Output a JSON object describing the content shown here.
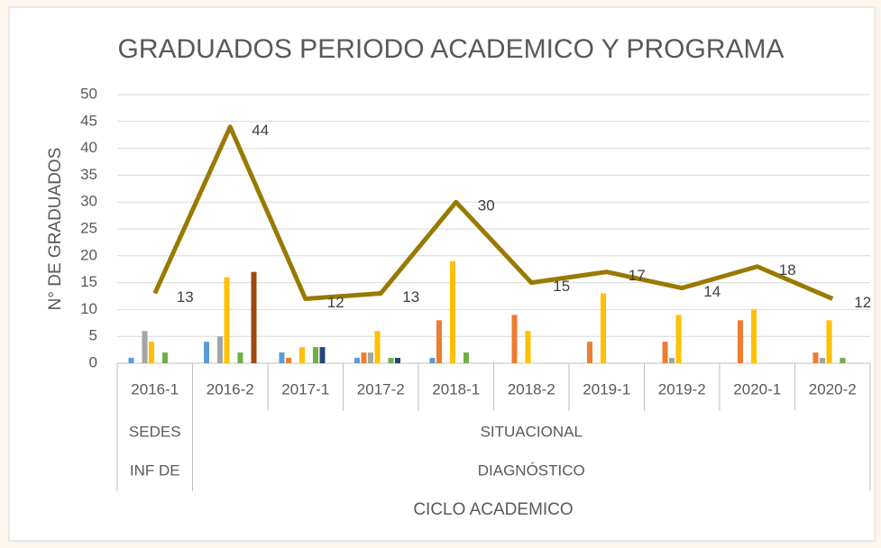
{
  "chart_data": {
    "type": "bar_line",
    "title": "GRADUADOS PERIODO ACADEMICO Y PROGRAMA",
    "y_label": "N° DE GRADUADOS",
    "x_label": "CICLO ACADEMICO",
    "categories": [
      "2016-1",
      "2016-2",
      "2017-1",
      "2017-2",
      "2018-1",
      "2018-2",
      "2019-1",
      "2019-2",
      "2020-1",
      "2020-2"
    ],
    "category_groups": [
      [
        "SEDES",
        "SITUACIONAL",
        null,
        null,
        null,
        null,
        null,
        null,
        null,
        null
      ],
      [
        "INF DE",
        "DIAGNÓSTICO",
        null,
        null,
        null,
        null,
        null,
        null,
        null,
        null
      ]
    ],
    "series": [
      {
        "color": "#5b9bd5",
        "values": [
          1,
          4,
          2,
          1,
          1,
          0,
          0,
          0,
          0,
          0
        ]
      },
      {
        "color": "#ed7d31",
        "values": [
          0,
          0,
          1,
          2,
          8,
          9,
          4,
          4,
          8,
          2
        ]
      },
      {
        "color": "#a5a5a5",
        "values": [
          6,
          5,
          0,
          2,
          0,
          0,
          0,
          1,
          0,
          1
        ]
      },
      {
        "color": "#ffc000",
        "values": [
          4,
          16,
          3,
          6,
          19,
          6,
          13,
          9,
          10,
          8
        ]
      },
      {
        "color": "#4472c4",
        "values": [
          0,
          0,
          0,
          0,
          0,
          0,
          0,
          0,
          0,
          0
        ]
      },
      {
        "color": "#70ad47",
        "values": [
          2,
          2,
          3,
          1,
          2,
          0,
          0,
          0,
          0,
          1
        ]
      },
      {
        "color": "#264478",
        "values": [
          0,
          0,
          3,
          1,
          0,
          0,
          0,
          0,
          0,
          0
        ]
      },
      {
        "color": "#9e480e",
        "values": [
          0,
          17,
          0,
          0,
          0,
          0,
          0,
          0,
          0,
          0
        ]
      }
    ],
    "line": {
      "type": "line",
      "color": "#997a00",
      "values": [
        13,
        44,
        12,
        13,
        30,
        15,
        17,
        14,
        18,
        12
      ]
    },
    "ylim": [
      0,
      50
    ],
    "yticks": [
      0,
      5,
      10,
      15,
      20,
      25,
      30,
      35,
      40,
      45,
      50
    ],
    "grid": true
  }
}
